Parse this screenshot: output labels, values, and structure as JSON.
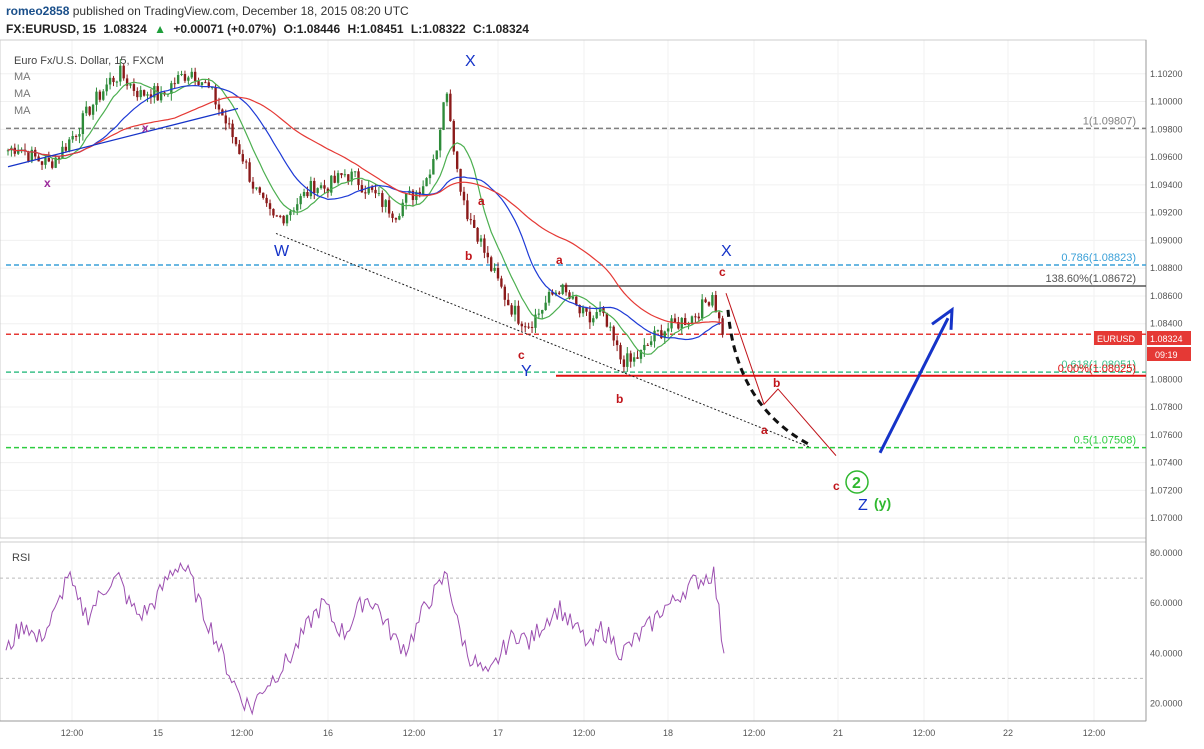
{
  "header": {
    "user": "romeo2858",
    "published": "published on TradingView.com, December 18, 2015 08:20 UTC",
    "symbol": "FX:EURUSD, 15",
    "last": "1.08324",
    "change_arrow": "▲",
    "change": "+0.00071 (+0.07%)",
    "open": "O:1.08446",
    "high": "H:1.08451",
    "low": "L:1.08322",
    "close": "C:1.08324"
  },
  "legend": {
    "title": "Euro Fx/U.S. Dollar, 15, FXCM",
    "ma1": "MA",
    "ma2": "MA",
    "ma3": "MA"
  },
  "rsi_label": "RSI",
  "price_tag": {
    "symbol": "EURUSD",
    "value": "1.08324",
    "countdown": "09:19"
  },
  "colors": {
    "up_candle": "#2e8b3a",
    "down_candle": "#8b1a1a",
    "ma_red": "#e53935",
    "ma_blue": "#1e3ad6",
    "ma_green": "#4caf50",
    "rsi": "#9c4fb0",
    "wave_blue": "#1533c8",
    "wave_red": "#c0141a",
    "wave_purple": "#9c2a9c",
    "wave_green": "#2fb82f"
  },
  "chart_data": {
    "type": "candlestick",
    "price_axis": {
      "min": 1.069,
      "max": 1.104,
      "ticks": [
        "1.10200",
        "1.10000",
        "1.09800",
        "1.09600",
        "1.09400",
        "1.09200",
        "1.09000",
        "1.08800",
        "1.08600",
        "1.08400",
        "1.08000",
        "1.07800",
        "1.07600",
        "1.07400",
        "1.07200",
        "1.07000"
      ]
    },
    "time_axis": {
      "ticks": [
        "12:00",
        "15",
        "12:00",
        "16",
        "12:00",
        "17",
        "12:00",
        "18",
        "12:00",
        "21",
        "12:00",
        "22",
        "12:00"
      ]
    },
    "rsi_axis": {
      "min": 15,
      "max": 82,
      "ticks": [
        "80.0000",
        "60.0000",
        "40.0000",
        "20.0000"
      ],
      "levels": [
        70,
        30
      ]
    },
    "horizontal_levels": [
      {
        "label": "1(1.09807)",
        "price": 1.09807,
        "color": "#808080"
      },
      {
        "label": "0.786(1.08823)",
        "price": 1.08823,
        "color": "#3aa0d8"
      },
      {
        "label": "138.60%(1.08672)",
        "price": 1.08672,
        "color": "#555555"
      },
      {
        "label": "",
        "price": 1.08324,
        "color": "#e53935"
      },
      {
        "label": "0.618(1.08051)",
        "price": 1.08051,
        "color": "#3cc08a"
      },
      {
        "label": "0.00%(1.08025)",
        "price": 1.08025,
        "color": "#e01010"
      },
      {
        "label": "0.5(1.07508)",
        "price": 1.07508,
        "color": "#2ecc40"
      }
    ],
    "close_path": [
      1.0965,
      1.0968,
      1.0962,
      1.0958,
      1.0955,
      1.0962,
      1.0972,
      1.0982,
      1.0995,
      1.1005,
      1.1015,
      1.102,
      1.1012,
      1.1005,
      1.1008,
      1.1002,
      1.1012,
      1.1018,
      1.1022,
      1.1015,
      1.1005,
      1.099,
      1.0975,
      1.096,
      1.094,
      1.0925,
      1.0915,
      1.0918,
      1.0925,
      1.0932,
      1.094,
      1.0938,
      1.0942,
      1.0948,
      1.0945,
      1.0938,
      1.0932,
      1.0925,
      1.092,
      1.093,
      1.0935,
      1.0945,
      1.0968,
      1.101,
      1.095,
      1.092,
      1.0905,
      1.0885,
      1.087,
      1.0855,
      1.0845,
      1.084,
      1.0848,
      1.0858,
      1.0866,
      1.0858,
      1.0848,
      1.0842,
      1.0848,
      1.0832,
      1.0815,
      1.0812,
      1.0818,
      1.0828,
      1.0835,
      1.0838,
      1.0842,
      1.0845,
      1.0852,
      1.0862,
      1.0832
    ],
    "rsi_path": [
      40,
      48,
      52,
      45,
      50,
      58,
      72,
      60,
      55,
      62,
      68,
      70,
      60,
      55,
      58,
      64,
      72,
      76,
      70,
      58,
      50,
      40,
      30,
      22,
      18,
      26,
      30,
      35,
      40,
      48,
      55,
      60,
      52,
      48,
      55,
      62,
      60,
      52,
      45,
      42,
      50,
      60,
      65,
      72,
      52,
      40,
      35,
      30,
      38,
      45,
      48,
      44,
      50,
      55,
      58,
      52,
      48,
      42,
      50,
      46,
      40,
      44,
      48,
      52,
      58,
      60,
      65,
      68,
      70,
      72,
      40
    ],
    "annotations": [
      "x",
      "x",
      "W",
      "X",
      "Y",
      "X",
      "Z",
      "a",
      "b",
      "c",
      "a",
      "c",
      "b",
      "a",
      "b",
      "c",
      "2",
      "(y)"
    ]
  }
}
